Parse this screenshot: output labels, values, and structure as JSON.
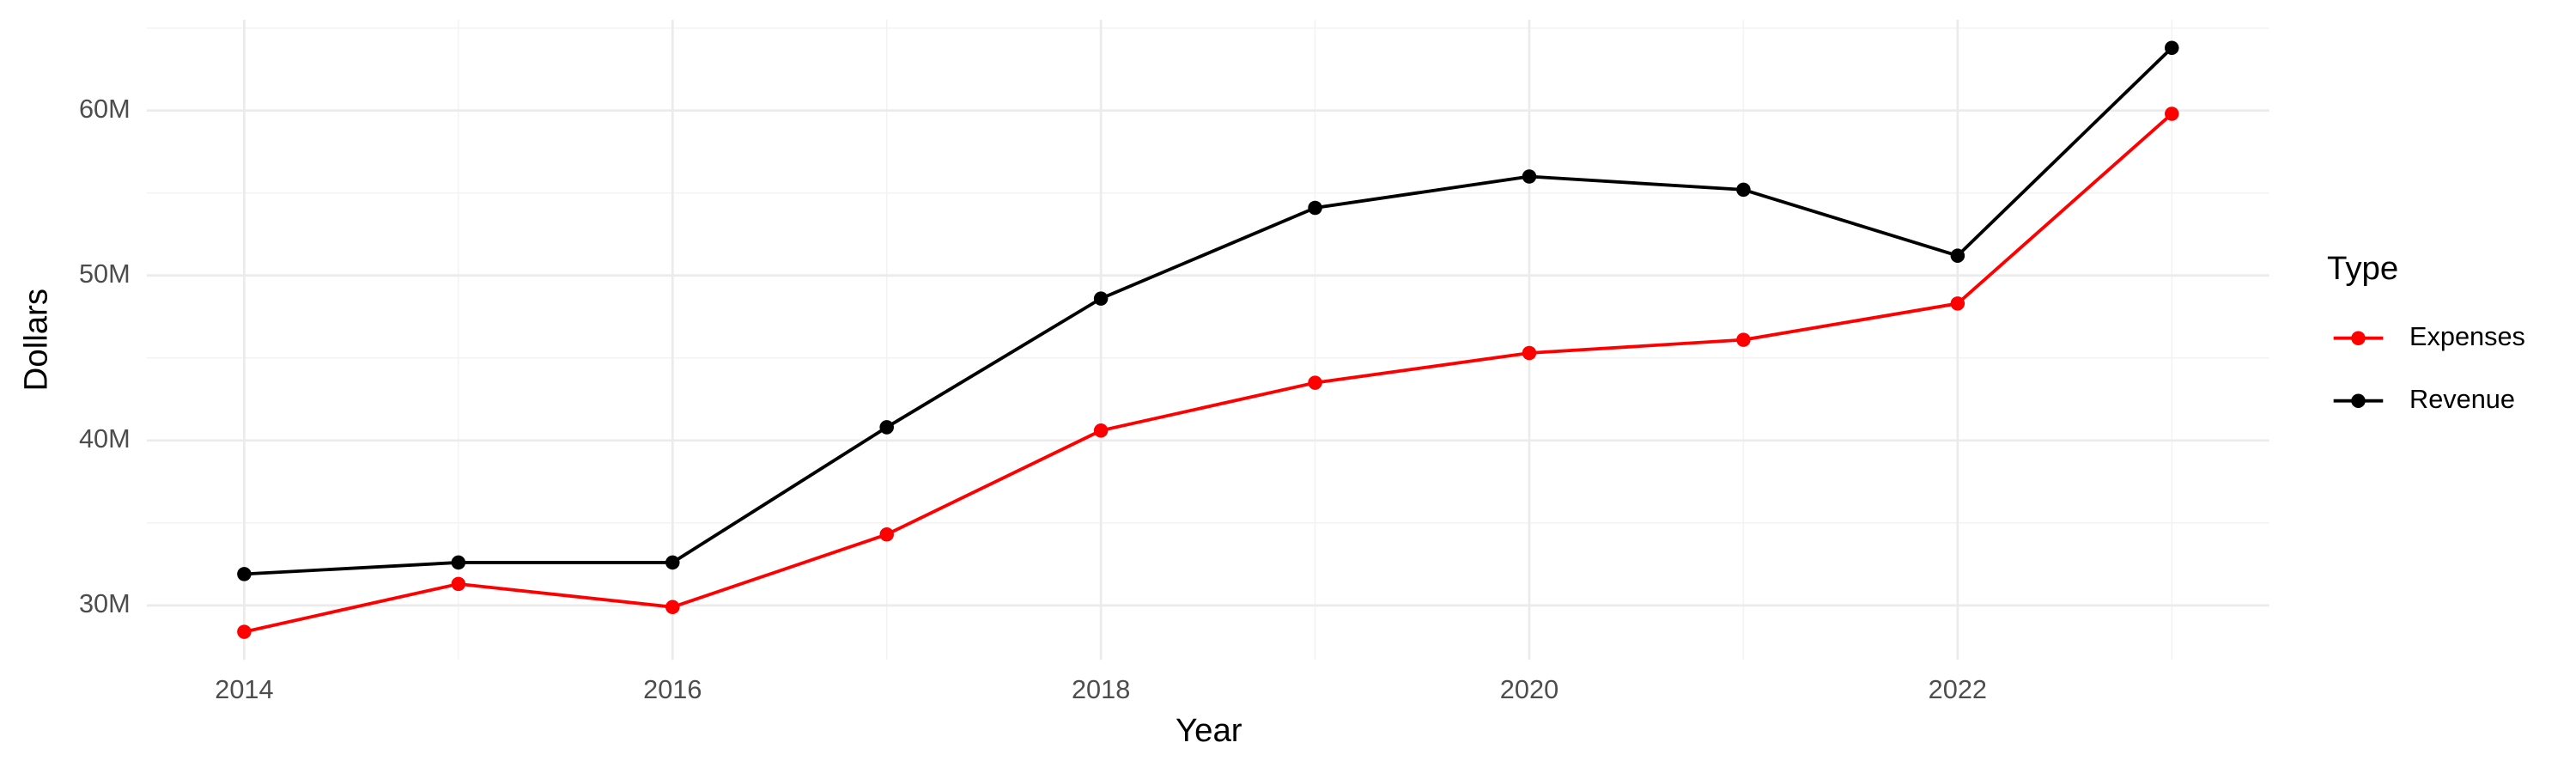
{
  "chart_data": {
    "type": "line",
    "x_label": "Year",
    "y_label": "Dollars",
    "legend_title": "Type",
    "legend_position": "right",
    "grid": true,
    "x": [
      2014,
      2015,
      2016,
      2017,
      2018,
      2019,
      2020,
      2021,
      2022,
      2023
    ],
    "series": [
      {
        "name": "Expenses",
        "color": "#ff0000",
        "values": [
          28400000,
          31300000,
          29900000,
          34300000,
          40600000,
          43500000,
          45300000,
          46100000,
          48300000,
          59800000
        ]
      },
      {
        "name": "Revenue",
        "color": "#000000",
        "values": [
          31900000,
          32600000,
          32600000,
          40800000,
          48600000,
          54100000,
          56000000,
          55200000,
          51200000,
          63800000
        ]
      }
    ],
    "xlim": [
      2013.545,
      2023.455
    ],
    "xticks": [
      2014,
      2016,
      2018,
      2020,
      2022
    ],
    "ylim": [
      26700000,
      65500000
    ],
    "yticks": [
      {
        "value": 30000000,
        "label": "30M"
      },
      {
        "value": 40000000,
        "label": "40M"
      },
      {
        "value": 50000000,
        "label": "50M"
      },
      {
        "value": 60000000,
        "label": "60M"
      }
    ]
  }
}
